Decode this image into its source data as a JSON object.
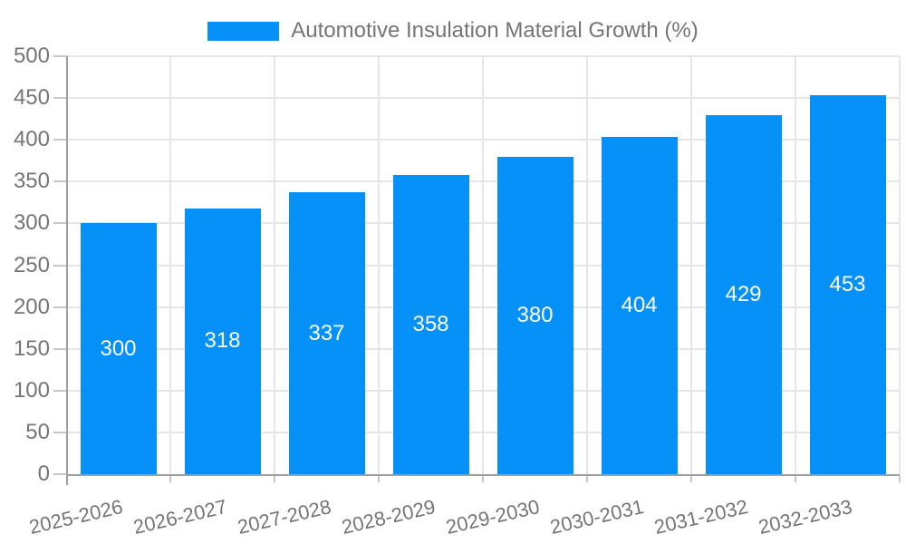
{
  "legend": {
    "label": "Automotive Insulation Material Growth (%)"
  },
  "chart_data": {
    "type": "bar",
    "title": "Automotive Insulation Material Growth (%)",
    "categories": [
      "2025-2026",
      "2026-2027",
      "2027-2028",
      "2028-2029",
      "2029-2030",
      "2030-2031",
      "2031-2032",
      "2032-2033"
    ],
    "series": [
      {
        "name": "Automotive Insulation Material Growth (%)",
        "values": [
          300,
          318,
          337,
          358,
          380,
          404,
          429,
          453
        ]
      }
    ],
    "xlabel": "",
    "ylabel": "",
    "ylim": [
      0,
      500
    ],
    "ytick_step": 50,
    "yticks": [
      0,
      50,
      100,
      150,
      200,
      250,
      300,
      350,
      400,
      450,
      500
    ],
    "grid": true,
    "value_label_position": "inside-center",
    "legend_position": "top-center",
    "x_label_angle_deg": -13,
    "colors": {
      "bar": "#0691f8",
      "value_label": "#ffffff",
      "axis": "#9e9e9e",
      "gridline": "#e6e6e6",
      "tick": "#c7c7c7",
      "text": "#757575",
      "background": "#ffffff"
    }
  }
}
